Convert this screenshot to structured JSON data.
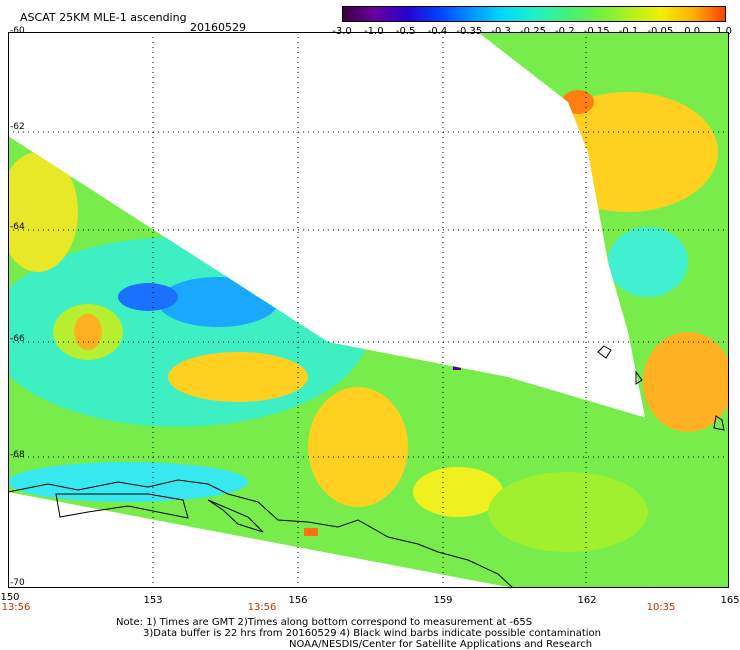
{
  "header": {
    "title": "ASCAT 25KM MLE-1 ascending",
    "date": "20160529"
  },
  "colorbar": {
    "ticks": [
      "-3.0",
      "-1.0",
      "-0.5",
      "-0.4",
      "-0.35",
      "-0.3",
      "-0.25",
      "-0.2",
      "-0.15",
      "-0.1",
      "-0.05",
      "0.0",
      "1.0"
    ],
    "colors": [
      "#3a0040",
      "#6a00a0",
      "#2a00d0",
      "#0040ff",
      "#0090ff",
      "#00d8ff",
      "#20f0c8",
      "#40f080",
      "#70f040",
      "#b0f020",
      "#f0f000",
      "#ffb000",
      "#ff4000"
    ]
  },
  "axes": {
    "lat_labels": [
      "-60",
      "-62",
      "-64",
      "-66",
      "-68",
      "-70"
    ],
    "lon_labels": [
      "150",
      "153",
      "156",
      "159",
      "162",
      "165"
    ],
    "time_labels": [
      "13:56",
      "13:56",
      "10:35"
    ]
  },
  "notes": {
    "line1": "Note: 1) Times are GMT 2)Times along bottom correspond to measurement at -65S",
    "line2": "3)Data buffer is 22 hrs from 20160529 4) Black wind barbs indicate possible contamination",
    "line3": "NOAA/NESDIS/Center for Satellite Applications and Research"
  }
}
